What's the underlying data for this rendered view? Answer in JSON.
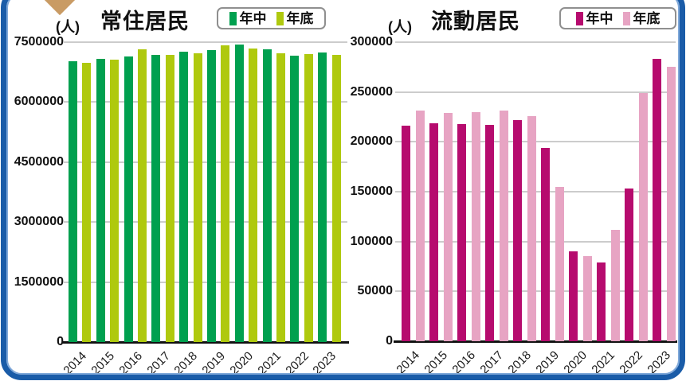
{
  "page": {
    "background": "#FFFFFF",
    "frame_color": "#1A5CA8",
    "frame_inner_color": "#7FA8D9",
    "gridline_color": "#CCCCCC",
    "axis_color": "#111111",
    "decoration_icon": "brown-diamond-icon",
    "decoration_colors": [
      "#8E5A28",
      "#C99B64"
    ]
  },
  "chart_data": [
    {
      "type": "bar",
      "title": "常住居民",
      "unit": "(人)",
      "xlabel": "",
      "ylabel": "(人)",
      "categories": [
        "2014",
        "2015",
        "2016",
        "2017",
        "2018",
        "2019",
        "2020",
        "2021",
        "2022",
        "2023"
      ],
      "series": [
        {
          "name": "年中",
          "color": "#00A04F",
          "values": [
            7020000,
            7080000,
            7140000,
            7180000,
            7260000,
            7300000,
            7440000,
            7320000,
            7170000,
            7250000
          ]
        },
        {
          "name": "年底",
          "color": "#AFC90E",
          "values": [
            6990000,
            7060000,
            7320000,
            7180000,
            7230000,
            7420000,
            7340000,
            7230000,
            7210000,
            7190000
          ]
        }
      ],
      "ylim": [
        0,
        7500000
      ],
      "yticks": [
        0,
        1500000,
        3000000,
        4500000,
        6000000,
        7500000
      ],
      "grid": true,
      "legend_position": "top-right"
    },
    {
      "type": "bar",
      "title": "流動居民",
      "unit": "(人)",
      "xlabel": "",
      "ylabel": "(人)",
      "categories": [
        "2014",
        "2015",
        "2016",
        "2017",
        "2018",
        "2019",
        "2020",
        "2021",
        "2022",
        "2023"
      ],
      "series": [
        {
          "name": "年中",
          "color": "#B60B6E",
          "values": [
            216000,
            219000,
            218000,
            217000,
            222000,
            194000,
            90000,
            79000,
            153000,
            283000
          ]
        },
        {
          "name": "年底",
          "color": "#E7A4C3",
          "values": [
            231000,
            229000,
            230000,
            231000,
            226000,
            155000,
            85000,
            112000,
            249000,
            275000
          ]
        }
      ],
      "ylim": [
        0,
        300000
      ],
      "yticks": [
        0,
        50000,
        100000,
        150000,
        200000,
        250000,
        300000
      ],
      "grid": true,
      "legend_position": "top-right"
    }
  ]
}
